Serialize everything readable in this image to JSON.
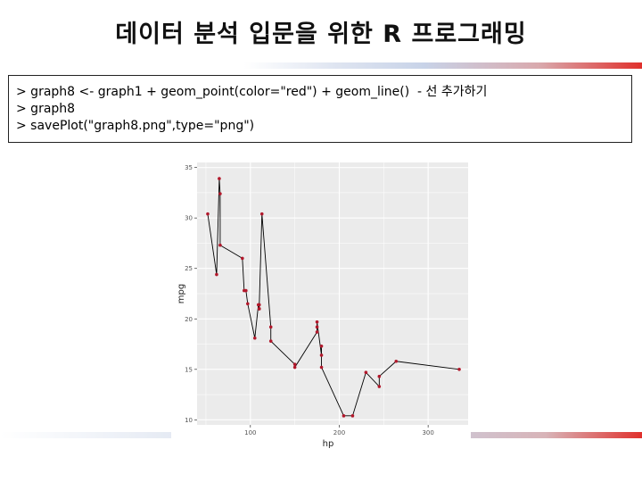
{
  "slide": {
    "title": "데이터 분석 입문을 위한 R 프로그래밍"
  },
  "code": {
    "lines": [
      "> graph8 <- graph1 + geom_point(color=\"red\") + geom_line()  - 선 추가하기",
      "> graph8",
      "> savePlot(\"graph8.png\",type=\"png\")"
    ]
  },
  "colors": {
    "point": "#b2182b",
    "line": "#000000",
    "panel": "#ebebeb",
    "grid": "#ffffff"
  },
  "chart_data": {
    "type": "line",
    "xlabel": "hp",
    "ylabel": "mpg",
    "xlim": [
      40,
      345
    ],
    "ylim": [
      9.5,
      35.5
    ],
    "xticks": [
      100,
      200,
      300
    ],
    "yticks": [
      10,
      15,
      20,
      25,
      30,
      35
    ],
    "grid": true,
    "points": [
      [
        52,
        30.4
      ],
      [
        62,
        24.4
      ],
      [
        65,
        33.9
      ],
      [
        66,
        32.4
      ],
      [
        66,
        27.3
      ],
      [
        91,
        26.0
      ],
      [
        93,
        22.8
      ],
      [
        95,
        22.8
      ],
      [
        97,
        21.5
      ],
      [
        105,
        18.1
      ],
      [
        109,
        21.4
      ],
      [
        110,
        21.0
      ],
      [
        110,
        21.0
      ],
      [
        110,
        21.4
      ],
      [
        113,
        30.4
      ],
      [
        123,
        19.2
      ],
      [
        123,
        17.8
      ],
      [
        150,
        15.5
      ],
      [
        150,
        15.2
      ],
      [
        175,
        18.7
      ],
      [
        175,
        19.2
      ],
      [
        175,
        19.7
      ],
      [
        180,
        16.4
      ],
      [
        180,
        17.3
      ],
      [
        180,
        15.2
      ],
      [
        205,
        10.4
      ],
      [
        215,
        10.4
      ],
      [
        230,
        14.7
      ],
      [
        245,
        13.3
      ],
      [
        245,
        14.3
      ],
      [
        264,
        15.8
      ],
      [
        335,
        15.0
      ]
    ]
  }
}
